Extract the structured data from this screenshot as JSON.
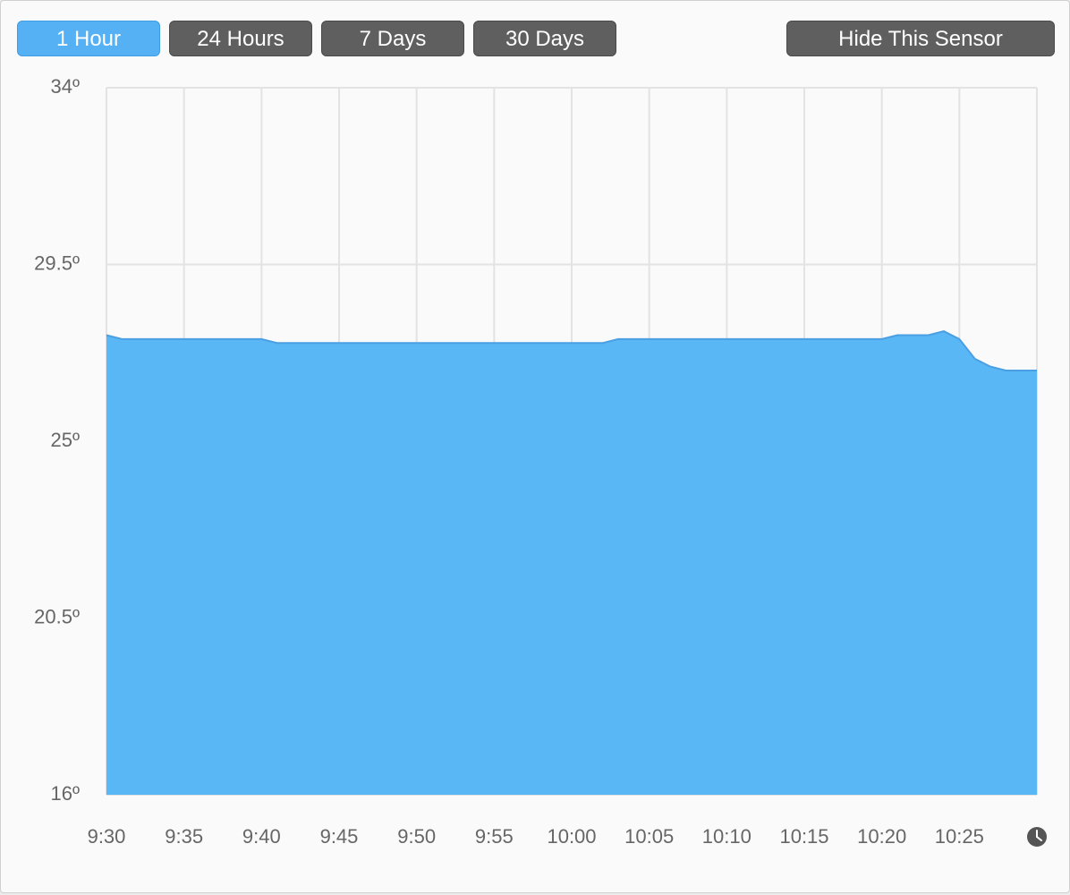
{
  "buttons": [
    {
      "label": "1 Hour",
      "active": true
    },
    {
      "label": "24 Hours",
      "active": false
    },
    {
      "label": "7 Days",
      "active": false
    },
    {
      "label": "30 Days",
      "active": false
    },
    {
      "label": "Hide This Sensor",
      "active": false
    }
  ],
  "chart_data": {
    "type": "area",
    "color": "#59b7f5",
    "line_color": "#4a9fe3",
    "grid": true,
    "x": [
      "9:30",
      "9:31",
      "9:32",
      "9:33",
      "9:34",
      "9:35",
      "9:36",
      "9:37",
      "9:38",
      "9:39",
      "9:40",
      "9:41",
      "9:42",
      "9:43",
      "9:44",
      "9:45",
      "9:46",
      "9:47",
      "9:48",
      "9:49",
      "9:50",
      "9:51",
      "9:52",
      "9:53",
      "9:54",
      "9:55",
      "9:56",
      "9:57",
      "9:58",
      "9:59",
      "10:00",
      "10:01",
      "10:02",
      "10:03",
      "10:04",
      "10:05",
      "10:06",
      "10:07",
      "10:08",
      "10:09",
      "10:10",
      "10:11",
      "10:12",
      "10:13",
      "10:14",
      "10:15",
      "10:16",
      "10:17",
      "10:18",
      "10:19",
      "10:20",
      "10:21",
      "10:22",
      "10:23",
      "10:24",
      "10:25",
      "10:26",
      "10:27",
      "10:28",
      "10:29",
      "10:30"
    ],
    "values": [
      27.7,
      27.6,
      27.6,
      27.6,
      27.6,
      27.6,
      27.6,
      27.6,
      27.6,
      27.6,
      27.6,
      27.5,
      27.5,
      27.5,
      27.5,
      27.5,
      27.5,
      27.5,
      27.5,
      27.5,
      27.5,
      27.5,
      27.5,
      27.5,
      27.5,
      27.5,
      27.5,
      27.5,
      27.5,
      27.5,
      27.5,
      27.5,
      27.5,
      27.6,
      27.6,
      27.6,
      27.6,
      27.6,
      27.6,
      27.6,
      27.6,
      27.6,
      27.6,
      27.6,
      27.6,
      27.6,
      27.6,
      27.6,
      27.6,
      27.6,
      27.6,
      27.7,
      27.7,
      27.7,
      27.8,
      27.6,
      27.1,
      26.9,
      26.8,
      26.8,
      26.8
    ],
    "xlim": [
      "9:30",
      "10:30"
    ],
    "xticks": [
      "9:30",
      "9:35",
      "9:40",
      "9:45",
      "9:50",
      "9:55",
      "10:00",
      "10:05",
      "10:10",
      "10:15",
      "10:20",
      "10:25"
    ],
    "ylim": [
      16,
      34
    ],
    "yticks": [
      {
        "value": 16,
        "label": "16º"
      },
      {
        "value": 20.5,
        "label": "20.5º"
      },
      {
        "value": 25,
        "label": "25º"
      },
      {
        "value": 29.5,
        "label": "29.5º"
      },
      {
        "value": 34,
        "label": "34º"
      }
    ]
  }
}
